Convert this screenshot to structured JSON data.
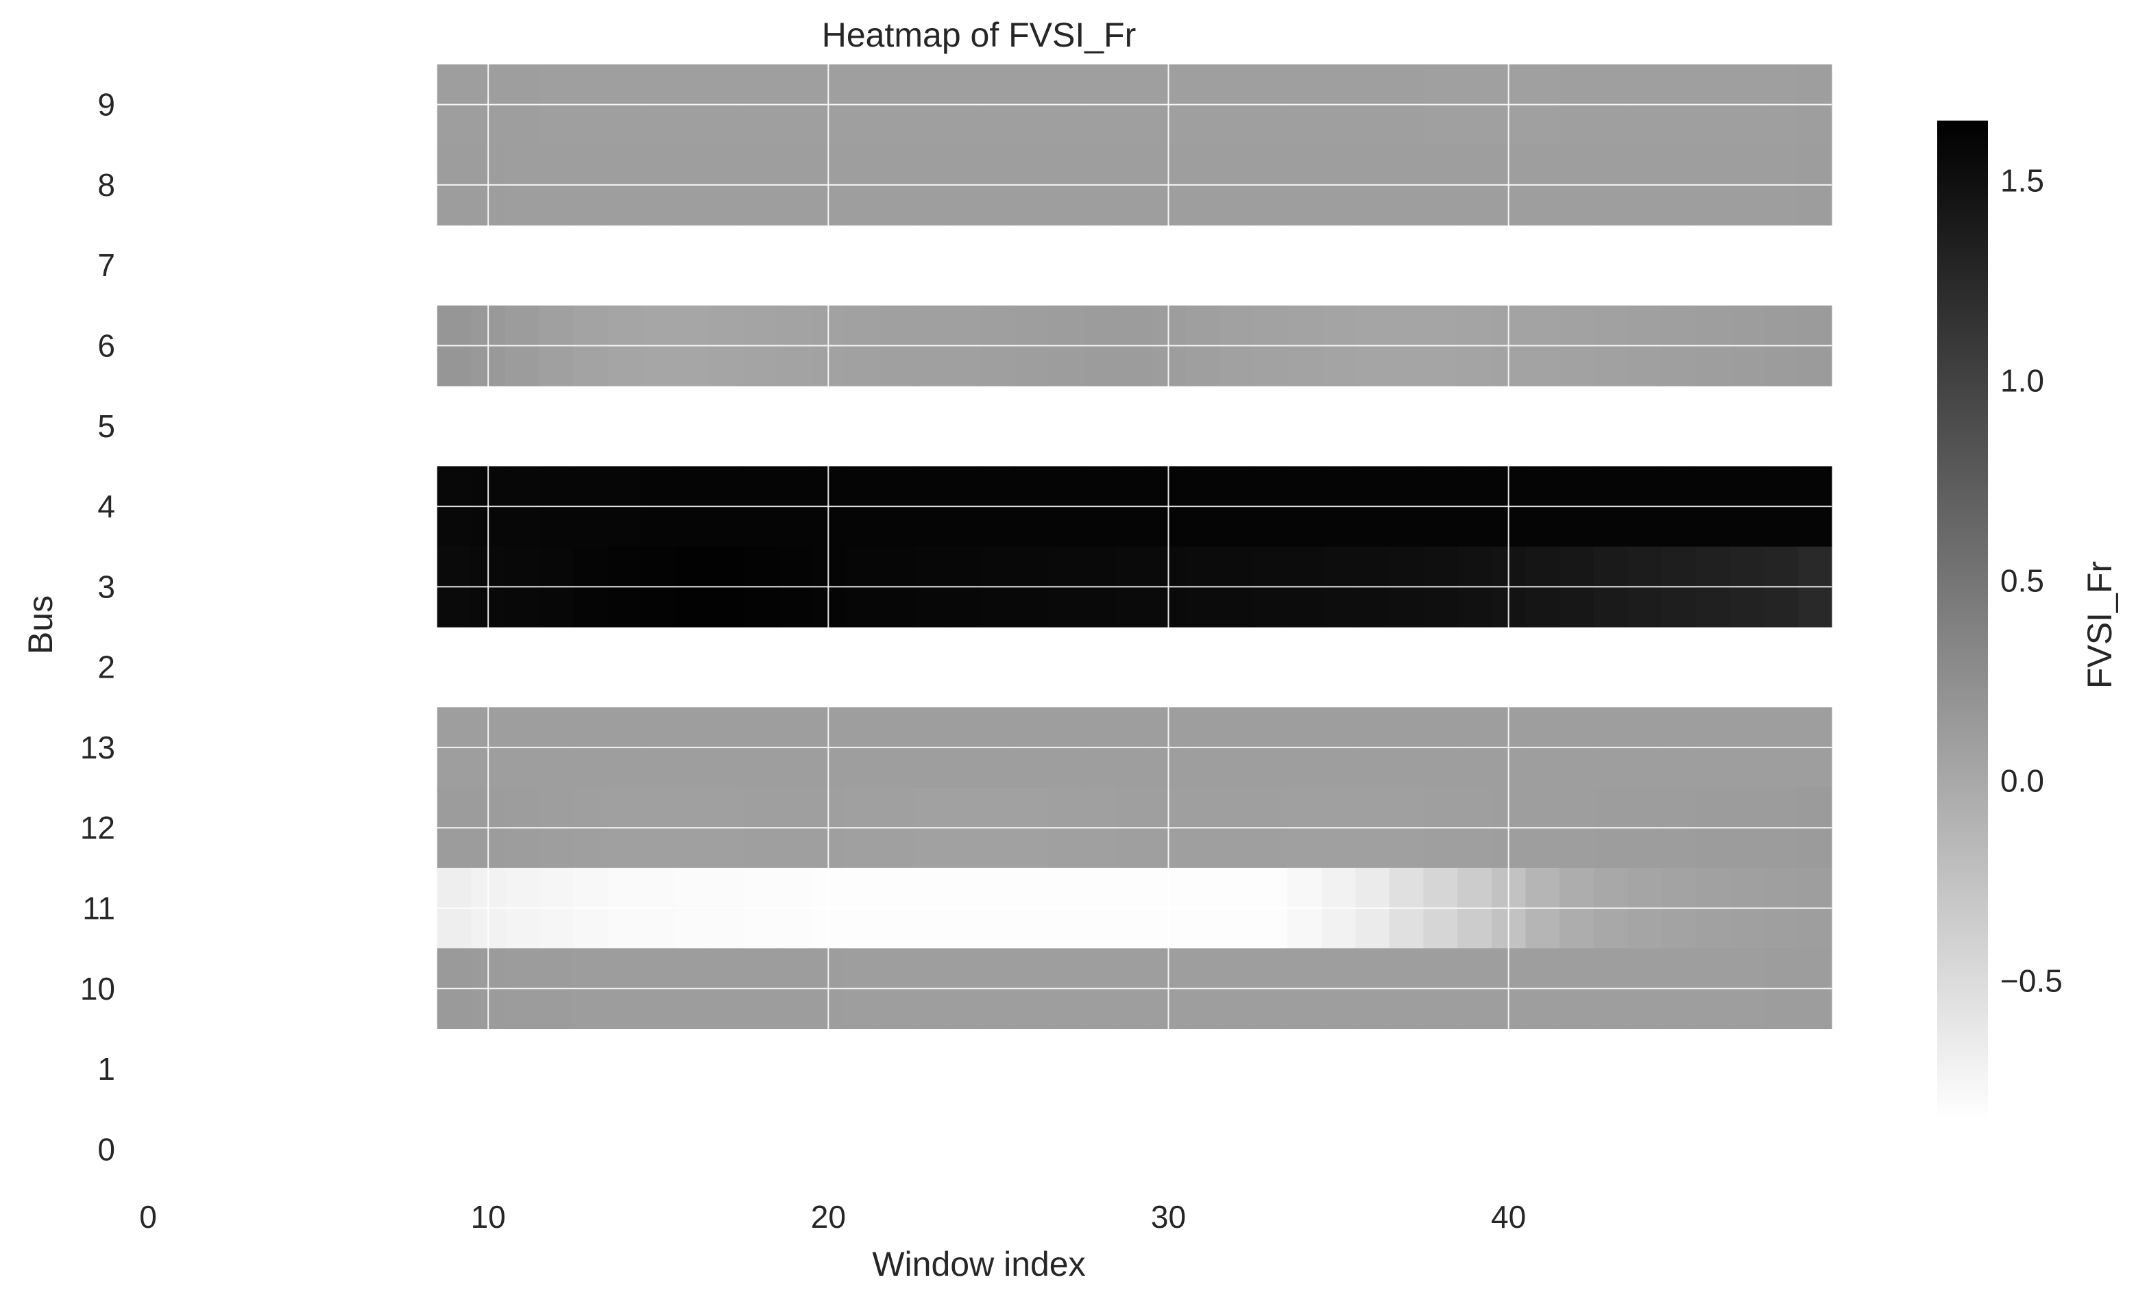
{
  "chart_data": {
    "type": "heatmap",
    "title": "Heatmap of FVSI_Fr",
    "xlabel": "Window index",
    "ylabel": "Bus",
    "colorbar_label": "FVSI_Fr",
    "colormap": "Greys",
    "x_ticks": [
      "0",
      "10",
      "20",
      "30",
      "40"
    ],
    "xlim": [
      0,
      49.5
    ],
    "x_start": 9,
    "x_end": 49,
    "y_categories": [
      "9",
      "8",
      "7",
      "6",
      "5",
      "4",
      "3",
      "2",
      "13",
      "12",
      "11",
      "10",
      "1",
      "0"
    ],
    "colorbar_ticks": [
      "1.5",
      "1.0",
      "0.5",
      "0.0",
      "−0.5"
    ],
    "colorbar_tick_values": [
      1.5,
      1.0,
      0.5,
      0.0,
      -0.5
    ],
    "vmin": -0.85,
    "vmax": 1.65,
    "grid": true,
    "rows": [
      {
        "bus": "9",
        "values": [
          0.1,
          0.1,
          0.1,
          0.09,
          0.09,
          0.09,
          0.09,
          0.09,
          0.09,
          0.09,
          0.09,
          0.09,
          0.09,
          0.09,
          0.09,
          0.09,
          0.09,
          0.09,
          0.09,
          0.09,
          0.09,
          0.09,
          0.09,
          0.09,
          0.09,
          0.09,
          0.09,
          0.09,
          0.09,
          0.08,
          0.08,
          0.08,
          0.08,
          0.09,
          0.09,
          0.09,
          0.09,
          0.09,
          0.09,
          0.09,
          0.1
        ]
      },
      {
        "bus": "8",
        "values": [
          0.11,
          0.11,
          0.1,
          0.1,
          0.1,
          0.1,
          0.1,
          0.1,
          0.1,
          0.1,
          0.1,
          0.1,
          0.1,
          0.1,
          0.1,
          0.1,
          0.1,
          0.1,
          0.1,
          0.1,
          0.1,
          0.1,
          0.1,
          0.1,
          0.1,
          0.1,
          0.1,
          0.1,
          0.1,
          0.1,
          0.1,
          0.1,
          0.1,
          0.1,
          0.1,
          0.1,
          0.1,
          0.1,
          0.1,
          0.1,
          0.11
        ]
      },
      {
        "bus": "7",
        "values": null
      },
      {
        "bus": "6",
        "values": [
          0.18,
          0.15,
          0.12,
          0.08,
          0.05,
          0.03,
          0.02,
          0.02,
          0.03,
          0.04,
          0.05,
          0.06,
          0.07,
          0.08,
          0.08,
          0.08,
          0.09,
          0.1,
          0.11,
          0.12,
          0.12,
          0.11,
          0.09,
          0.07,
          0.06,
          0.05,
          0.04,
          0.03,
          0.03,
          0.03,
          0.04,
          0.05,
          0.05,
          0.06,
          0.07,
          0.08,
          0.09,
          0.1,
          0.11,
          0.12,
          0.13
        ]
      },
      {
        "bus": "5",
        "values": null
      },
      {
        "bus": "4",
        "values": [
          1.57,
          1.58,
          1.58,
          1.59,
          1.59,
          1.59,
          1.6,
          1.6,
          1.6,
          1.6,
          1.6,
          1.6,
          1.6,
          1.6,
          1.6,
          1.6,
          1.6,
          1.6,
          1.6,
          1.6,
          1.6,
          1.6,
          1.6,
          1.6,
          1.6,
          1.6,
          1.6,
          1.6,
          1.6,
          1.6,
          1.6,
          1.6,
          1.6,
          1.6,
          1.6,
          1.6,
          1.6,
          1.6,
          1.6,
          1.6,
          1.6
        ]
      },
      {
        "bus": "3",
        "values": [
          1.55,
          1.56,
          1.57,
          1.58,
          1.6,
          1.61,
          1.62,
          1.63,
          1.63,
          1.62,
          1.61,
          1.6,
          1.59,
          1.59,
          1.58,
          1.58,
          1.57,
          1.57,
          1.56,
          1.56,
          1.55,
          1.55,
          1.54,
          1.54,
          1.53,
          1.53,
          1.52,
          1.52,
          1.51,
          1.5,
          1.48,
          1.46,
          1.44,
          1.42,
          1.4,
          1.38,
          1.36,
          1.34,
          1.32,
          1.3,
          1.25
        ]
      },
      {
        "bus": "2",
        "values": null
      },
      {
        "bus": "13",
        "values": [
          0.1,
          0.1,
          0.1,
          0.1,
          0.1,
          0.1,
          0.1,
          0.1,
          0.1,
          0.1,
          0.1,
          0.1,
          0.1,
          0.1,
          0.1,
          0.1,
          0.1,
          0.1,
          0.1,
          0.1,
          0.1,
          0.1,
          0.1,
          0.1,
          0.1,
          0.1,
          0.1,
          0.1,
          0.1,
          0.1,
          0.1,
          0.1,
          0.1,
          0.1,
          0.1,
          0.1,
          0.1,
          0.1,
          0.1,
          0.1,
          0.1
        ]
      },
      {
        "bus": "12",
        "values": [
          0.12,
          0.12,
          0.11,
          0.1,
          0.09,
          0.08,
          0.08,
          0.08,
          0.08,
          0.09,
          0.09,
          0.09,
          0.08,
          0.08,
          0.07,
          0.07,
          0.07,
          0.07,
          0.08,
          0.08,
          0.09,
          0.09,
          0.09,
          0.09,
          0.09,
          0.08,
          0.08,
          0.08,
          0.08,
          0.09,
          0.09,
          0.1,
          0.1,
          0.1,
          0.11,
          0.11,
          0.11,
          0.12,
          0.12,
          0.12,
          0.13
        ]
      },
      {
        "bus": "11",
        "values": [
          -0.68,
          -0.72,
          -0.74,
          -0.76,
          -0.78,
          -0.8,
          -0.8,
          -0.81,
          -0.81,
          -0.82,
          -0.82,
          -0.83,
          -0.83,
          -0.83,
          -0.83,
          -0.83,
          -0.83,
          -0.83,
          -0.83,
          -0.83,
          -0.83,
          -0.83,
          -0.83,
          -0.83,
          -0.83,
          -0.78,
          -0.72,
          -0.65,
          -0.55,
          -0.45,
          -0.35,
          -0.25,
          -0.12,
          -0.05,
          0.0,
          0.03,
          0.05,
          0.07,
          0.08,
          0.09,
          0.1
        ]
      },
      {
        "bus": "10",
        "values": [
          0.14,
          0.13,
          0.12,
          0.12,
          0.11,
          0.11,
          0.11,
          0.11,
          0.11,
          0.11,
          0.11,
          0.11,
          0.1,
          0.1,
          0.1,
          0.1,
          0.1,
          0.1,
          0.1,
          0.1,
          0.1,
          0.1,
          0.1,
          0.1,
          0.1,
          0.1,
          0.1,
          0.1,
          0.1,
          0.1,
          0.1,
          0.1,
          0.1,
          0.1,
          0.1,
          0.1,
          0.1,
          0.1,
          0.1,
          0.11,
          0.11
        ]
      },
      {
        "bus": "1",
        "values": null
      },
      {
        "bus": "0",
        "values": null
      }
    ]
  }
}
